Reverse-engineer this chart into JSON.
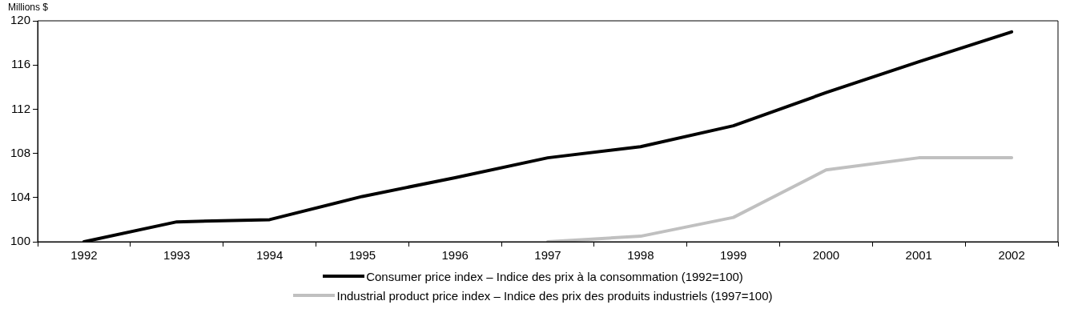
{
  "chart_data": {
    "type": "line",
    "ylabel": "Millions $",
    "categories": [
      "1992",
      "1993",
      "1994",
      "1995",
      "1996",
      "1997",
      "1998",
      "1999",
      "2000",
      "2001",
      "2002"
    ],
    "series": [
      {
        "name": "Consumer price index – Indice des prix à la consommation (1992=100)",
        "color": "#000000",
        "values": [
          100,
          101.8,
          102.0,
          104.1,
          105.8,
          107.6,
          108.6,
          110.5,
          113.5,
          116.3,
          119.0
        ]
      },
      {
        "name": "Industrial product price index – Indice des prix des produits industriels (1997=100)",
        "color": "#c0c0c0",
        "values": [
          null,
          null,
          null,
          null,
          null,
          100,
          100.5,
          102.2,
          106.5,
          107.6,
          107.6
        ]
      }
    ],
    "ylim": [
      100,
      120
    ],
    "yticks": [
      100,
      104,
      108,
      112,
      116,
      120
    ],
    "grid": false,
    "legend": "bottom",
    "marker": "none",
    "line_style": "solid"
  }
}
